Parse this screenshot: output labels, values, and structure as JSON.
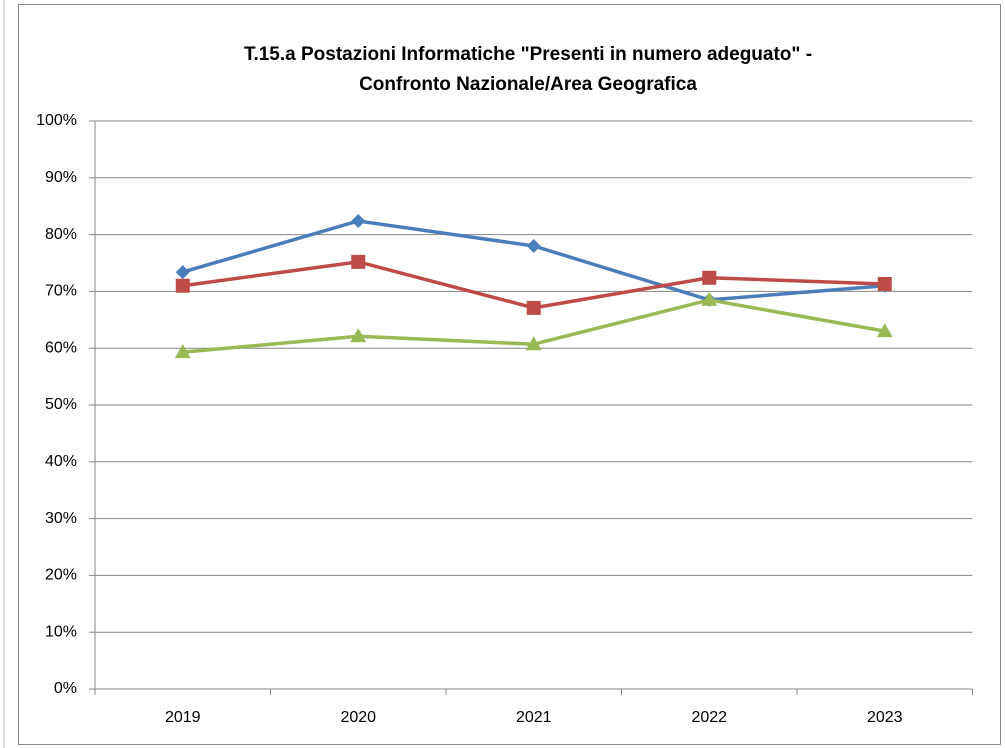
{
  "chart_data": {
    "type": "line",
    "title": [
      "T.15.a Postazioni Informatiche \"Presenti in numero adeguato\" -",
      "Confronto Nazionale/Area Geografica"
    ],
    "categories": [
      "2019",
      "2020",
      "2021",
      "2022",
      "2023"
    ],
    "series": [
      {
        "color": "#4a7ebb",
        "marker": "diamond",
        "values": [
          73.4,
          82.4,
          78.0,
          68.5,
          71.0
        ]
      },
      {
        "color": "#be4b48",
        "marker": "square",
        "values": [
          71.0,
          75.2,
          67.1,
          72.4,
          71.3
        ]
      },
      {
        "color": "#98b954",
        "marker": "triangle",
        "values": [
          59.3,
          62.1,
          60.7,
          68.5,
          63.0
        ]
      }
    ],
    "ylim": [
      0,
      100
    ],
    "yticks": [
      {
        "value": 0,
        "label": "0%"
      },
      {
        "value": 10,
        "label": "10%"
      },
      {
        "value": 20,
        "label": "20%"
      },
      {
        "value": 30,
        "label": "30%"
      },
      {
        "value": 40,
        "label": "40%"
      },
      {
        "value": 50,
        "label": "50%"
      },
      {
        "value": 60,
        "label": "60%"
      },
      {
        "value": 70,
        "label": "70%"
      },
      {
        "value": 80,
        "label": "80%"
      },
      {
        "value": 90,
        "label": "90%"
      },
      {
        "value": 100,
        "label": "100%"
      }
    ],
    "grid": true
  }
}
